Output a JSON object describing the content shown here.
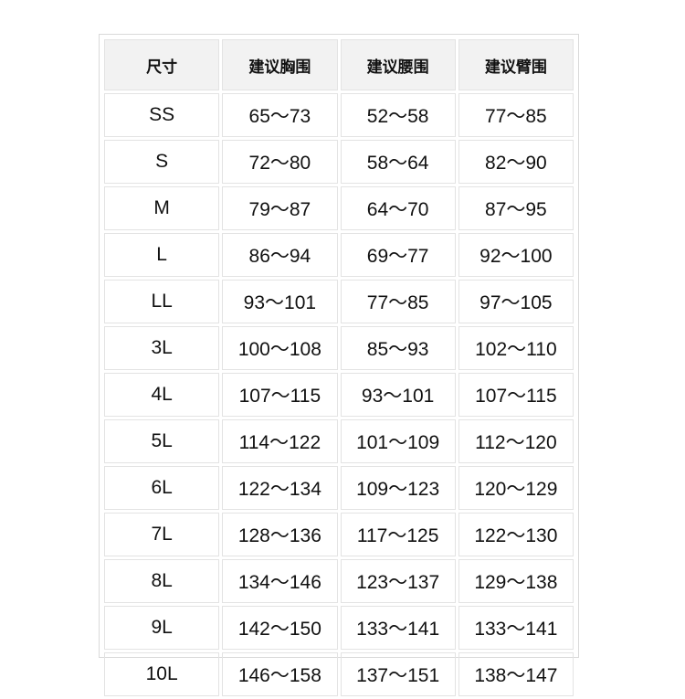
{
  "table": {
    "headers": [
      "尺寸",
      "建议胸围",
      "建议腰围",
      "建议臂围"
    ],
    "rows": [
      [
        "SS",
        "65～73",
        "52～58",
        "77～85"
      ],
      [
        "S",
        "72～80",
        "58～64",
        "82～90"
      ],
      [
        "M",
        "79～87",
        "64～70",
        "87～95"
      ],
      [
        "L",
        "86～94",
        "69～77",
        "92～100"
      ],
      [
        "LL",
        "93～101",
        "77～85",
        "97～105"
      ],
      [
        "3L",
        "100～108",
        "85～93",
        "102～110"
      ],
      [
        "4L",
        "107～115",
        "93～101",
        "107～115"
      ],
      [
        "5L",
        "114～122",
        "101～109",
        "112～120"
      ],
      [
        "6L",
        "122～134",
        "109～123",
        "120～129"
      ],
      [
        "7L",
        "128～136",
        "117～125",
        "122～130"
      ],
      [
        "8L",
        "134～146",
        "123～137",
        "129～138"
      ],
      [
        "9L",
        "142～150",
        "133～141",
        "133～141"
      ],
      [
        "10L",
        "146～158",
        "137～151",
        "138～147"
      ]
    ]
  }
}
